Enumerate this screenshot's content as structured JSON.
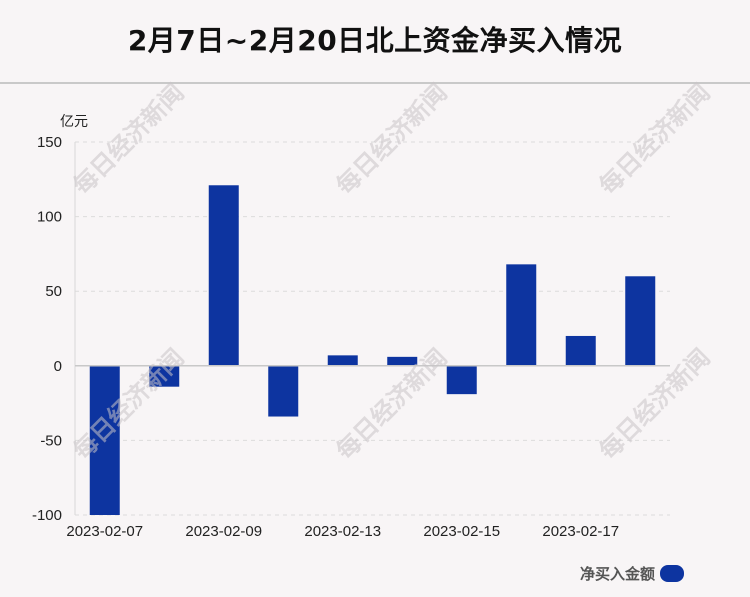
{
  "header": {
    "title": "2月7日~2月20日北上资金净买入情况"
  },
  "watermark": "每日经济新闻",
  "legend": {
    "label": "净买入金额",
    "color": "#0d34a0"
  },
  "chart_data": {
    "type": "bar",
    "unit_label": "亿元",
    "x_tick_labels": [
      "2023-02-07",
      "2023-02-09",
      "2023-02-13",
      "2023-02-15",
      "2023-02-17"
    ],
    "y_ticks": [
      150,
      100,
      50,
      0,
      -50,
      -100
    ],
    "ylim": [
      -100,
      150
    ],
    "grid": true,
    "bar_color": "#0d34a0",
    "series": [
      {
        "name": "净买入金额",
        "values": [
          -100,
          -14,
          121,
          -34,
          7,
          6,
          -19,
          68,
          20,
          60
        ]
      }
    ]
  }
}
